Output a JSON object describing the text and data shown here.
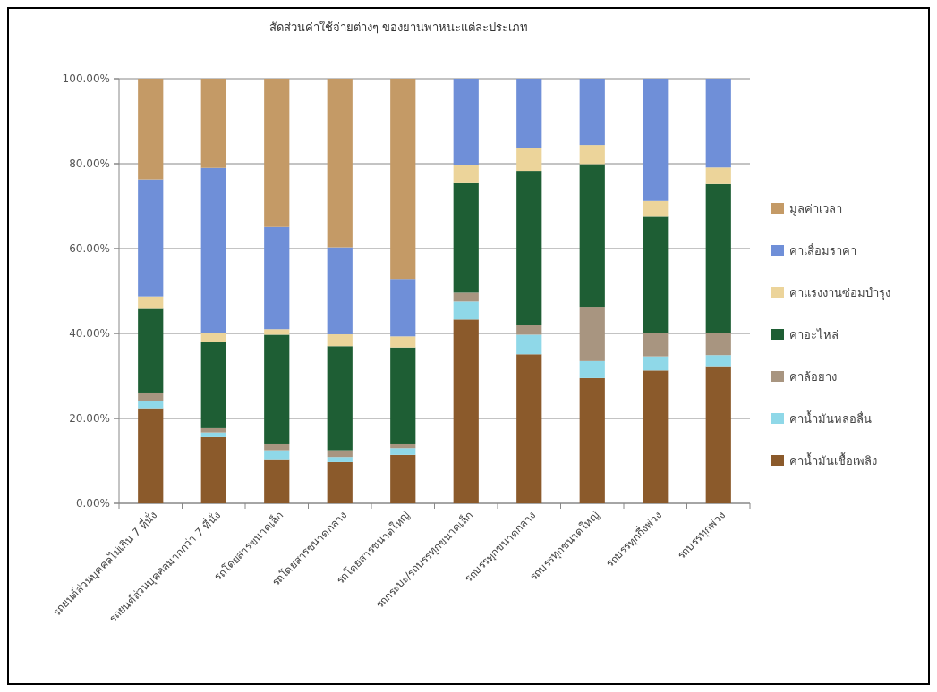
{
  "chart_data": {
    "type": "bar",
    "title": "สัดส่วนค่าใช้จ่ายต่างๆ ของยานพาหนะแต่ละประเภท",
    "stacked": true,
    "categories": [
      "รถยนต์ส่วนบุคคลไม่เกิน 7 ที่นั่ง",
      "รถยนต์ส่วนบุคคลมากกว่า 7 ที่นั่ง",
      "รถโดยสารขนาดเล็ก",
      "รถโดยสารขนาดกลาง",
      "รถโดยสารขนาดใหญ่",
      "รถกระบะ/รถบรรทุกขนาดเล็ก",
      "รถบรรทุกขนาดกลาง",
      "รถบรรทุกขนาดใหญ่",
      "รถบรรทุกกึ่งพ่วง",
      "รถบรรทุกพ่วง"
    ],
    "series": [
      {
        "name": "ค่าน้ำมันเชื้อเพลิง",
        "color": "#8b5a2b",
        "values": [
          22.4,
          15.6,
          10.4,
          9.7,
          11.4,
          43.3,
          35.1,
          29.5,
          31.3,
          32.3
        ]
      },
      {
        "name": "ค่าน้ำมันหล่อลื่น",
        "color": "#8fd8e8",
        "values": [
          1.7,
          1.1,
          2.1,
          1.2,
          1.6,
          4.2,
          4.6,
          4.0,
          3.3,
          2.6
        ]
      },
      {
        "name": "ค่าล้อยาง",
        "color": "#a89580",
        "values": [
          1.8,
          1.0,
          1.4,
          1.6,
          0.9,
          2.1,
          2.2,
          12.8,
          5.4,
          5.3
        ]
      },
      {
        "name": "ค่าอะไหล่",
        "color": "#1e5e34",
        "values": [
          19.9,
          20.4,
          25.8,
          24.5,
          22.8,
          25.8,
          36.4,
          33.6,
          27.5,
          35.0
        ]
      },
      {
        "name": "ค่าแรงงานซ่อมบำรุง",
        "color": "#ecd49a",
        "values": [
          2.9,
          1.9,
          1.3,
          2.8,
          2.6,
          4.3,
          5.4,
          4.5,
          3.7,
          3.9
        ]
      },
      {
        "name": "ค่าเสื่อมราคา",
        "color": "#6f8fd8",
        "values": [
          27.6,
          39.0,
          24.1,
          20.5,
          13.5,
          20.3,
          16.3,
          15.6,
          28.8,
          20.9
        ]
      },
      {
        "name": "มูลค่าเวลา",
        "color": "#c49a66",
        "values": [
          23.7,
          21.0,
          34.9,
          39.7,
          47.2,
          0,
          0,
          0,
          0,
          0
        ]
      }
    ],
    "ylim": [
      0,
      100
    ],
    "yticks": [
      {
        "value": 0,
        "label": "0.00%"
      },
      {
        "value": 20,
        "label": "20.00%"
      },
      {
        "value": 40,
        "label": "40.00%"
      },
      {
        "value": 60,
        "label": "60.00%"
      },
      {
        "value": 80,
        "label": "80.00%"
      },
      {
        "value": 100,
        "label": "100.00%"
      }
    ],
    "grid": "y",
    "legend": "right"
  }
}
